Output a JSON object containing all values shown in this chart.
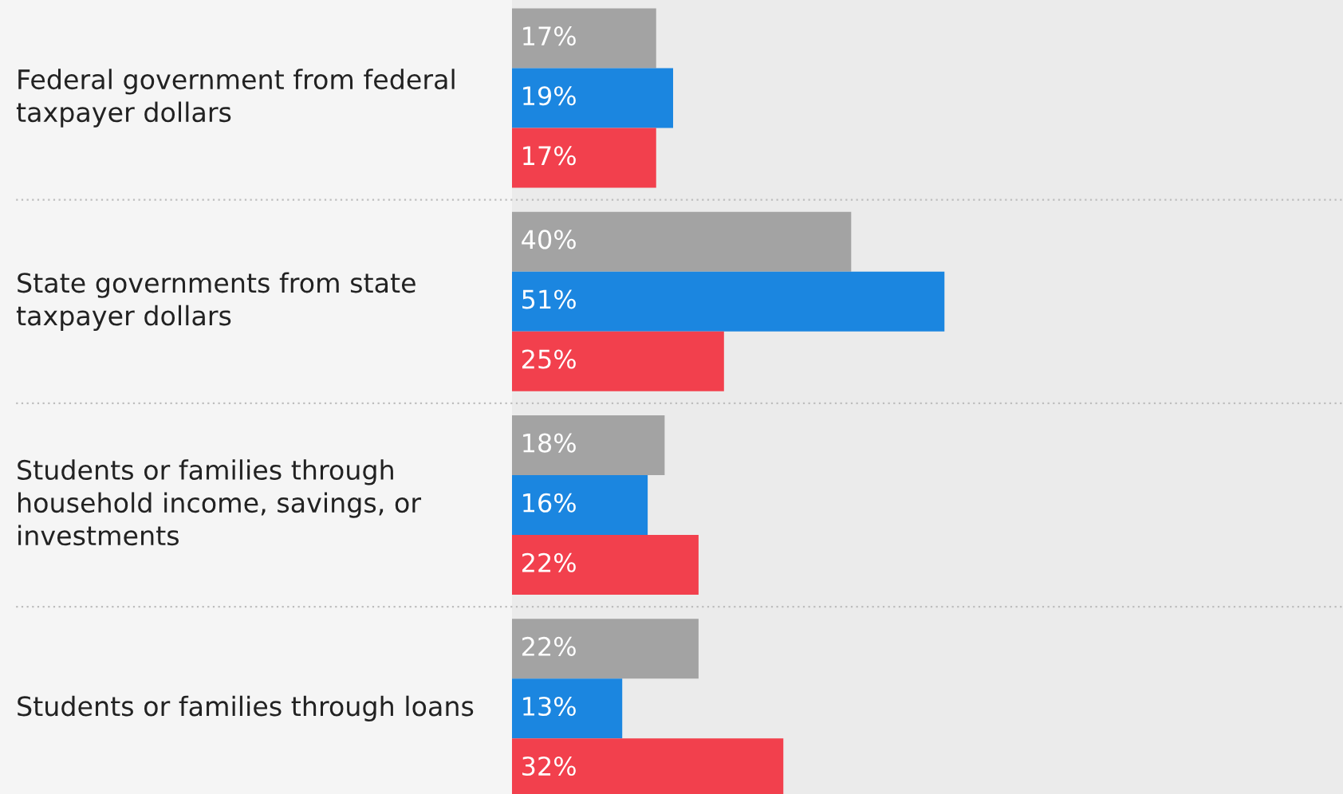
{
  "chart_data": {
    "type": "bar",
    "orientation": "horizontal",
    "categories": [
      "Federal government from federal\ntaxpayer dollars",
      "State governments from state\ntaxpayer dollars",
      "Students or families through\nhousehold income, savings, or\ninvestments",
      "Students or families through loans"
    ],
    "series": [
      {
        "color": "#a3a3a3",
        "values": [
          17,
          40,
          18,
          22
        ],
        "value_labels": [
          "17%",
          "40%",
          "18%",
          "22%"
        ]
      },
      {
        "color": "#1b86e0",
        "values": [
          19,
          51,
          16,
          13
        ],
        "value_labels": [
          "19%",
          "51%",
          "16%",
          "13%"
        ]
      },
      {
        "color": "#f2404d",
        "values": [
          17,
          25,
          22,
          32
        ],
        "value_labels": [
          "17%",
          "25%",
          "22%",
          "32%"
        ]
      }
    ],
    "xlim": [
      0,
      98
    ],
    "tick_labels": false,
    "legend": false
  }
}
